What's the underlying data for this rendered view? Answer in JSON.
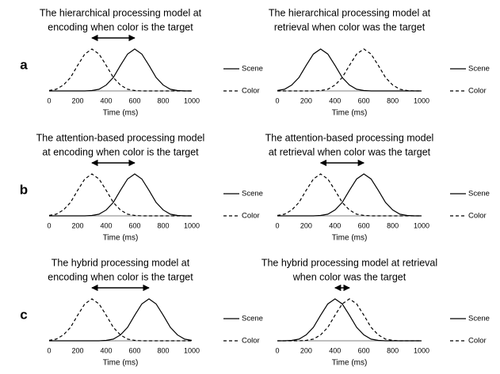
{
  "row_labels": [
    "a",
    "b",
    "c"
  ],
  "chart_data": [
    {
      "type": "line",
      "title": [
        "The hierarchical processing model at",
        "encoding when color is the target"
      ],
      "xlabel": "Time (ms)",
      "x": [
        0,
        50,
        100,
        150,
        200,
        250,
        300,
        350,
        400,
        450,
        500,
        550,
        600,
        650,
        700,
        750,
        800,
        850,
        900,
        950,
        1000
      ],
      "xlim": [
        0,
        1000
      ],
      "xticks": [
        0,
        200,
        400,
        600,
        800,
        1000
      ],
      "ylim": [
        0,
        1
      ],
      "arrow": [
        300,
        600
      ],
      "series": [
        {
          "name": "Scene",
          "color": "#000000",
          "line_style": "solid",
          "values": [
            0,
            0,
            0,
            0,
            0,
            0,
            0.01,
            0.04,
            0.14,
            0.32,
            0.61,
            0.88,
            1,
            0.88,
            0.61,
            0.32,
            0.14,
            0.04,
            0.01,
            0,
            0
          ]
        },
        {
          "name": "Color",
          "color": "#000000",
          "line_style": "dashed",
          "values": [
            0.01,
            0.04,
            0.14,
            0.32,
            0.61,
            0.88,
            1,
            0.88,
            0.61,
            0.32,
            0.14,
            0.04,
            0.01,
            0,
            0,
            0,
            0,
            0,
            0,
            0,
            0
          ]
        }
      ]
    },
    {
      "type": "line",
      "title": [
        "The hierarchical processing model at",
        "retrieval when color was the target"
      ],
      "xlabel": "Time (ms)",
      "x": [
        0,
        50,
        100,
        150,
        200,
        250,
        300,
        350,
        400,
        450,
        500,
        550,
        600,
        650,
        700,
        750,
        800,
        850,
        900,
        950,
        1000
      ],
      "xlim": [
        0,
        1000
      ],
      "xticks": [
        0,
        200,
        400,
        600,
        800,
        1000
      ],
      "ylim": [
        0,
        1
      ],
      "series": [
        {
          "name": "Scene",
          "color": "#000000",
          "line_style": "solid",
          "values": [
            0.01,
            0.04,
            0.14,
            0.32,
            0.61,
            0.88,
            1,
            0.88,
            0.61,
            0.32,
            0.14,
            0.04,
            0.01,
            0,
            0,
            0,
            0,
            0,
            0,
            0,
            0
          ]
        },
        {
          "name": "Color",
          "color": "#000000",
          "line_style": "dashed",
          "values": [
            0,
            0,
            0,
            0,
            0,
            0,
            0.01,
            0.04,
            0.14,
            0.32,
            0.61,
            0.88,
            1,
            0.88,
            0.61,
            0.32,
            0.14,
            0.04,
            0.01,
            0,
            0
          ]
        }
      ]
    },
    {
      "type": "line",
      "title": [
        "The attention-based processing model",
        "at encoding when color is the target"
      ],
      "xlabel": "Time (ms)",
      "x": [
        0,
        50,
        100,
        150,
        200,
        250,
        300,
        350,
        400,
        450,
        500,
        550,
        600,
        650,
        700,
        750,
        800,
        850,
        900,
        950,
        1000
      ],
      "xlim": [
        0,
        1000
      ],
      "xticks": [
        0,
        200,
        400,
        600,
        800,
        1000
      ],
      "ylim": [
        0,
        1
      ],
      "arrow": [
        300,
        600
      ],
      "series": [
        {
          "name": "Scene",
          "color": "#000000",
          "line_style": "solid",
          "values": [
            0,
            0,
            0,
            0,
            0,
            0,
            0.01,
            0.04,
            0.14,
            0.32,
            0.61,
            0.88,
            1,
            0.88,
            0.61,
            0.32,
            0.14,
            0.04,
            0.01,
            0,
            0
          ]
        },
        {
          "name": "Color",
          "color": "#000000",
          "line_style": "dashed",
          "values": [
            0.01,
            0.04,
            0.14,
            0.32,
            0.61,
            0.88,
            1,
            0.88,
            0.61,
            0.32,
            0.14,
            0.04,
            0.01,
            0,
            0,
            0,
            0,
            0,
            0,
            0,
            0
          ]
        }
      ]
    },
    {
      "type": "line",
      "title": [
        "The attention-based processing model",
        "at retrieval when color was the target"
      ],
      "xlabel": "Time (ms)",
      "x": [
        0,
        50,
        100,
        150,
        200,
        250,
        300,
        350,
        400,
        450,
        500,
        550,
        600,
        650,
        700,
        750,
        800,
        850,
        900,
        950,
        1000
      ],
      "xlim": [
        0,
        1000
      ],
      "xticks": [
        0,
        200,
        400,
        600,
        800,
        1000
      ],
      "ylim": [
        0,
        1
      ],
      "arrow": [
        300,
        600
      ],
      "series": [
        {
          "name": "Scene",
          "color": "#000000",
          "line_style": "solid",
          "values": [
            0,
            0,
            0,
            0,
            0,
            0,
            0.01,
            0.04,
            0.14,
            0.32,
            0.61,
            0.88,
            1,
            0.88,
            0.61,
            0.32,
            0.14,
            0.04,
            0.01,
            0,
            0
          ]
        },
        {
          "name": "Color",
          "color": "#000000",
          "line_style": "dashed",
          "values": [
            0.01,
            0.04,
            0.14,
            0.32,
            0.61,
            0.88,
            1,
            0.88,
            0.61,
            0.32,
            0.14,
            0.04,
            0.01,
            0,
            0,
            0,
            0,
            0,
            0,
            0,
            0
          ]
        }
      ]
    },
    {
      "type": "line",
      "title": [
        "The hybrid processing model at",
        "encoding when color is the target"
      ],
      "xlabel": "Time (ms)",
      "x": [
        0,
        50,
        100,
        150,
        200,
        250,
        300,
        350,
        400,
        450,
        500,
        550,
        600,
        650,
        700,
        750,
        800,
        850,
        900,
        950,
        1000
      ],
      "xlim": [
        0,
        1000
      ],
      "xticks": [
        0,
        200,
        400,
        600,
        800,
        1000
      ],
      "ylim": [
        0,
        1
      ],
      "arrow": [
        300,
        700
      ],
      "series": [
        {
          "name": "Scene",
          "color": "#000000",
          "line_style": "solid",
          "values": [
            0,
            0,
            0,
            0,
            0,
            0,
            0,
            0,
            0.01,
            0.04,
            0.14,
            0.32,
            0.61,
            0.88,
            1,
            0.88,
            0.61,
            0.32,
            0.14,
            0.04,
            0.01
          ]
        },
        {
          "name": "Color",
          "color": "#000000",
          "line_style": "dashed",
          "values": [
            0.01,
            0.04,
            0.14,
            0.32,
            0.61,
            0.88,
            1,
            0.88,
            0.61,
            0.32,
            0.14,
            0.04,
            0.01,
            0,
            0,
            0,
            0,
            0,
            0,
            0,
            0
          ]
        }
      ]
    },
    {
      "type": "line",
      "title": [
        "The hybrid processing model at retrieval",
        "when color was the target"
      ],
      "xlabel": "Time (ms)",
      "x": [
        0,
        50,
        100,
        150,
        200,
        250,
        300,
        350,
        400,
        450,
        500,
        550,
        600,
        650,
        700,
        750,
        800,
        850,
        900,
        950,
        1000
      ],
      "xlim": [
        0,
        1000
      ],
      "xticks": [
        0,
        200,
        400,
        600,
        800,
        1000
      ],
      "ylim": [
        0,
        1
      ],
      "arrow": [
        400,
        500
      ],
      "series": [
        {
          "name": "Scene",
          "color": "#000000",
          "line_style": "solid",
          "values": [
            0,
            0,
            0.01,
            0.04,
            0.14,
            0.32,
            0.61,
            0.88,
            1,
            0.88,
            0.61,
            0.32,
            0.14,
            0.04,
            0.01,
            0,
            0,
            0,
            0,
            0,
            0
          ]
        },
        {
          "name": "Color",
          "color": "#000000",
          "line_style": "dashed",
          "values": [
            0,
            0,
            0,
            0,
            0.01,
            0.04,
            0.14,
            0.32,
            0.61,
            0.88,
            1,
            0.88,
            0.61,
            0.32,
            0.14,
            0.04,
            0.01,
            0,
            0,
            0,
            0
          ]
        }
      ]
    }
  ]
}
